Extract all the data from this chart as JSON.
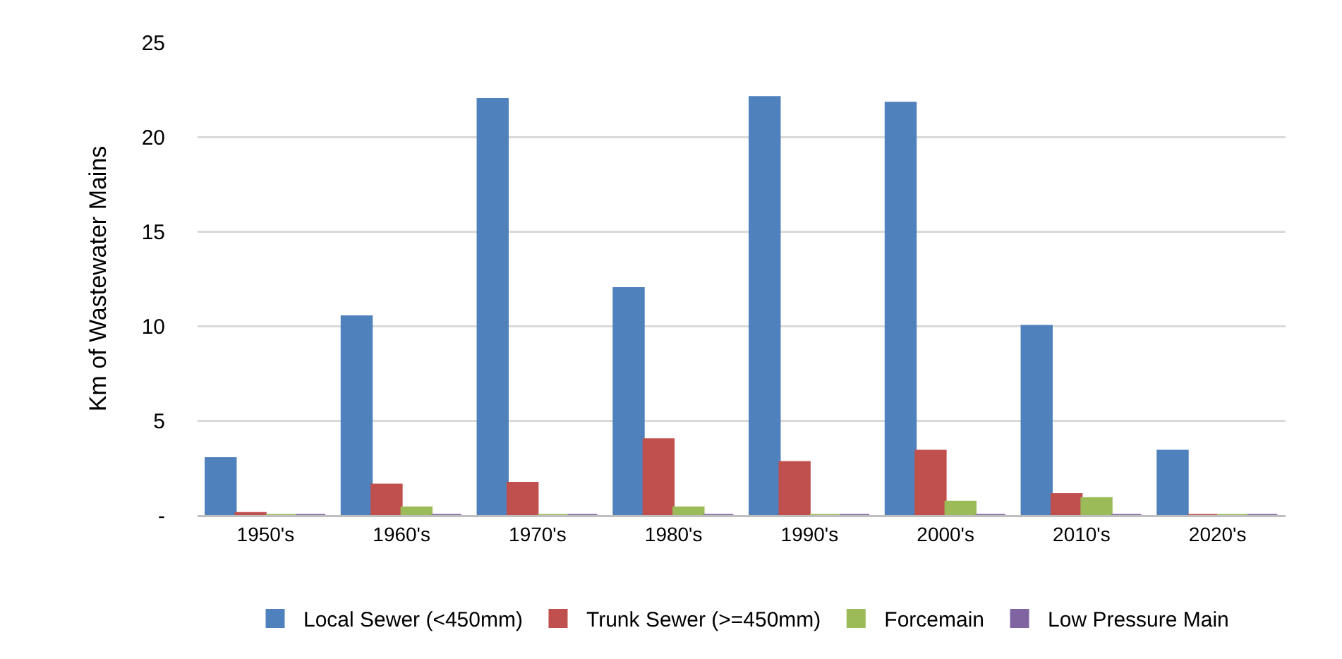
{
  "chart_data": {
    "type": "bar",
    "ylabel": "Km of Wastewater Mains",
    "categories": [
      "1950's",
      "1960's",
      "1970's",
      "1980's",
      "1990's",
      "2000's",
      "2010's",
      "2020's"
    ],
    "series": [
      {
        "name": "Local Sewer (<450mm)",
        "color": "#4f81bd",
        "values": [
          3.0,
          10.5,
          22.0,
          12.0,
          22.1,
          21.8,
          10.0,
          3.4
        ]
      },
      {
        "name": "Trunk Sewer (>=450mm)",
        "color": "#c0504d",
        "values": [
          0.1,
          1.6,
          1.7,
          4.0,
          2.8,
          3.4,
          1.1,
          0
        ]
      },
      {
        "name": "Forcemain",
        "color": "#9bbb59",
        "values": [
          0,
          0.4,
          0,
          0.4,
          0,
          0.7,
          0.9,
          0
        ]
      },
      {
        "name": "Low Pressure Main",
        "color": "#8064a2",
        "values": [
          0,
          0,
          0,
          0,
          0,
          0,
          0,
          0
        ]
      }
    ],
    "ylim": [
      0,
      25
    ],
    "yticks": [
      {
        "value": 0,
        "label": "-"
      },
      5,
      10,
      15,
      20,
      25
    ],
    "grid": "y",
    "legend": "bottom"
  }
}
